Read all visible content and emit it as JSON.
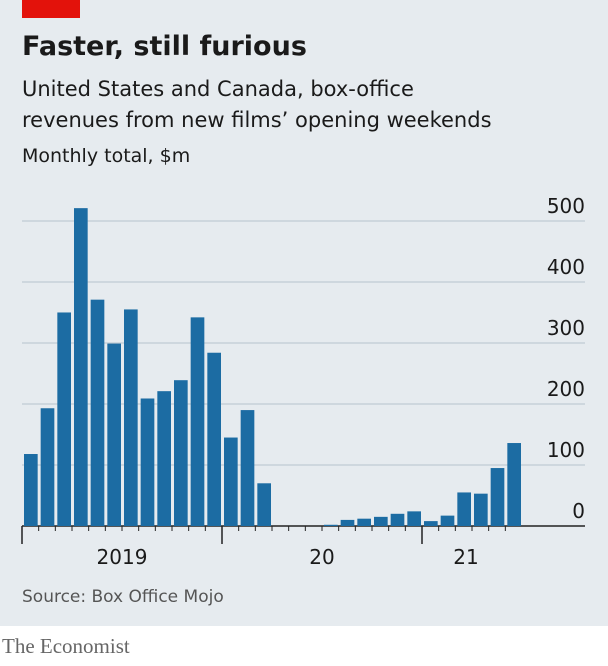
{
  "chart_data": {
    "type": "bar",
    "title": "Faster, still furious",
    "subtitle": [
      "United States and Canada, box-office",
      "revenues from new films’ opening weekends"
    ],
    "unit_label": "Monthly total, $m",
    "source": "Source: Box Office Mojo",
    "brand": "The Economist",
    "years": [
      "2019",
      "20",
      "21"
    ],
    "values": [
      118,
      193,
      350,
      521,
      371,
      299,
      355,
      209,
      221,
      239,
      342,
      284,
      145,
      190,
      70,
      0,
      0,
      0,
      2,
      10,
      12,
      15,
      20,
      24,
      8,
      17,
      55,
      53,
      95,
      136
    ],
    "color": "#1c6ca3",
    "ylim": [
      0,
      520
    ],
    "yticks": [
      0,
      100,
      200,
      300,
      400,
      500
    ],
    "grid": true
  }
}
